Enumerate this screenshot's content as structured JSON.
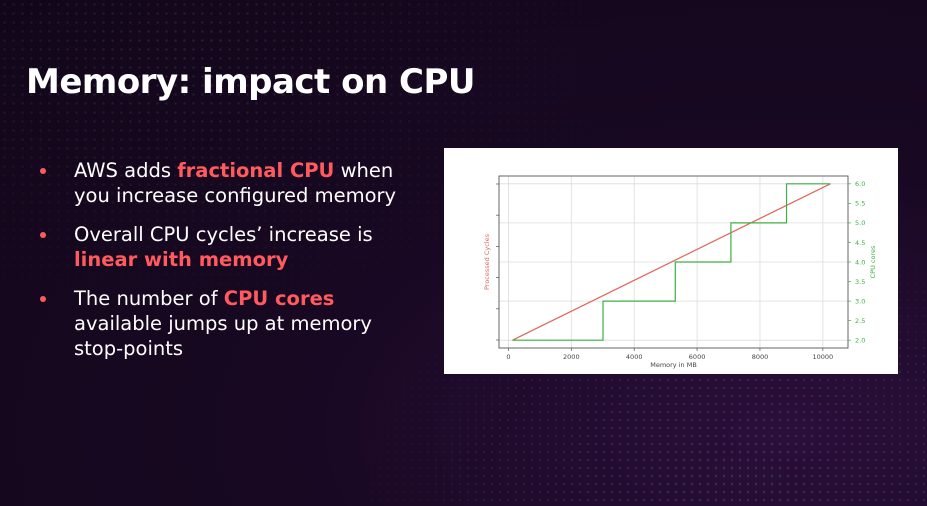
{
  "slide": {
    "title": "Memory: impact on CPU",
    "bullets": [
      {
        "pre": "AWS adds ",
        "highlight": "fractional CPU",
        "post": " when you increase configured memory"
      },
      {
        "pre": "Overall CPU cycles’ increase is ",
        "highlight": "linear with memory",
        "post": ""
      },
      {
        "pre": "The number of ",
        "highlight": "CPU cores",
        "post": " available jumps up at memory stop-points"
      }
    ],
    "colors": {
      "accent": "#ff5a5f",
      "text": "#ffffff",
      "background": "#160820"
    }
  },
  "chart_data": {
    "type": "line",
    "xlabel": "Memory in MB",
    "ylabel_left": "Processed Cycles",
    "ylabel_right": "CPU cores",
    "xlim": [
      -300,
      10800
    ],
    "x_ticks": [
      0,
      2000,
      4000,
      6000,
      8000,
      10000
    ],
    "y_right_lim": [
      1.8,
      6.2
    ],
    "y_right_ticks": [
      "2.0",
      "2.5",
      "3.0",
      "3.5",
      "4.0",
      "4.5",
      "5.0",
      "5.5",
      "6.0"
    ],
    "grid": true,
    "series": [
      {
        "name": "",
        "axis": "left",
        "color": "#e0655a",
        "x": [
          128,
          10240
        ],
        "y": [
          0,
          1
        ]
      },
      {
        "name": "",
        "axis": "right",
        "color": "#3cb043",
        "step": true,
        "x": [
          128,
          3008,
          3008,
          5307,
          5307,
          7076,
          7076,
          8845,
          8845,
          10240
        ],
        "y": [
          2,
          2,
          3,
          3,
          4,
          4,
          5,
          5,
          6,
          6
        ]
      }
    ]
  }
}
